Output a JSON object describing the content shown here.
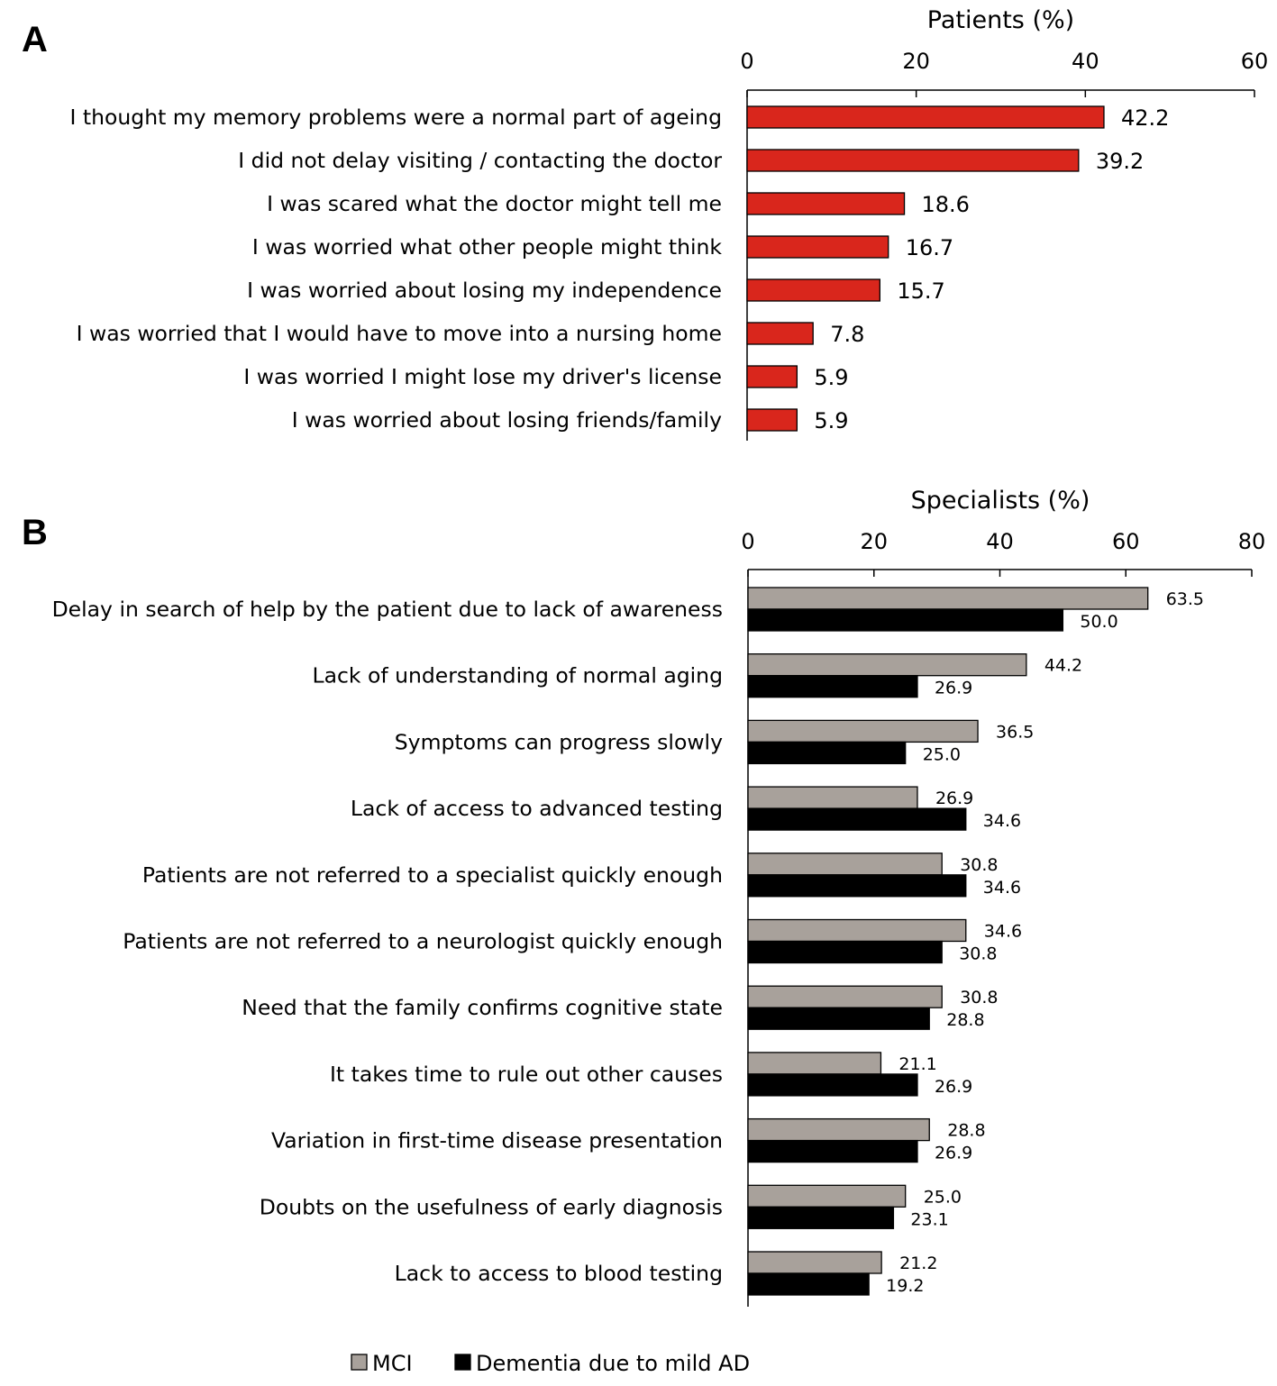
{
  "chart_data": [
    {
      "panel": "A",
      "type": "bar",
      "orientation": "horizontal",
      "xlabel": "Patients (%)",
      "xlim": [
        0,
        60
      ],
      "xticks": [
        0,
        20,
        40,
        60
      ],
      "axis_position": "top",
      "categories": [
        "I thought my memory problems were a normal part of ageing",
        "I did not delay visiting / contacting the doctor",
        "I was scared what the doctor might tell me",
        "I was worried what other people might think",
        "I was worried about losing my independence",
        "I was worried that I would have to move into a nursing home",
        "I was worried I might lose my driver's license",
        "I was worried about losing friends/family"
      ],
      "series": [
        {
          "values": [
            42.2,
            39.2,
            18.6,
            16.7,
            15.7,
            7.8,
            5.9,
            5.9
          ],
          "labels": [
            "42.2",
            "39.2",
            "18.6",
            "16.7",
            "15.7",
            "7.8",
            "5.9",
            "5.9"
          ],
          "color": "#d9261c"
        }
      ]
    },
    {
      "panel": "B",
      "type": "bar",
      "orientation": "horizontal",
      "xlabel": "Specialists (%)",
      "xlim": [
        0,
        80
      ],
      "xticks": [
        0,
        20,
        40,
        60,
        80
      ],
      "axis_position": "top",
      "legend_position": "bottom-center",
      "categories": [
        "Delay in search of help by the patient due to lack of awareness",
        "Lack of understanding of normal aging",
        "Symptoms can progress slowly",
        "Lack of access to advanced testing",
        "Patients are not referred to a specialist quickly enough",
        "Patients are not referred to a neurologist quickly enough",
        "Need that the family confirms cognitive state",
        "It takes time to rule out other causes",
        "Variation in first-time disease presentation",
        "Doubts on the usefulness of early diagnosis",
        "Lack to access to blood testing"
      ],
      "series": [
        {
          "name": "MCI",
          "color": "#a8a19b",
          "values": [
            63.5,
            44.2,
            36.5,
            26.9,
            30.8,
            34.6,
            30.8,
            21.1,
            28.8,
            25.0,
            21.2
          ],
          "labels": [
            "63.5",
            "44.2",
            "36.5",
            "26.9",
            "30.8",
            "34.6",
            "30.8",
            "21.1",
            "28.8",
            "25.0",
            "21.2"
          ]
        },
        {
          "name": "Dementia due to mild AD",
          "color": "#000000",
          "values": [
            50.0,
            26.9,
            25.0,
            34.6,
            34.6,
            30.8,
            28.8,
            26.9,
            26.9,
            23.1,
            19.2
          ],
          "labels": [
            "50.0",
            "26.9",
            "25.0",
            "34.6",
            "34.6",
            "30.8",
            "28.8",
            "26.9",
            "26.9",
            "23.1",
            "19.2"
          ]
        }
      ]
    }
  ]
}
